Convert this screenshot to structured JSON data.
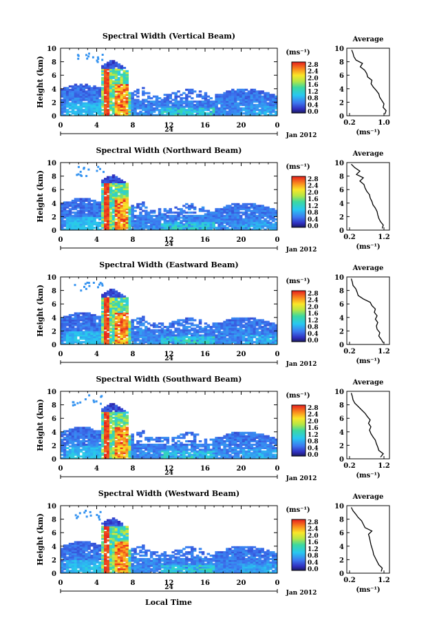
{
  "figure": {
    "xlabel": "Local Time",
    "date_label": "Jan 2012",
    "cbar_unit": "(ms⁻¹)",
    "avg_title": "Average",
    "avg_xlabel": "(ms⁻¹)",
    "ylabel": "Height (km)"
  },
  "chart_data": [
    {
      "type": "heatmap",
      "title": "Spectral Width (Vertical Beam)",
      "xticks": [
        "0",
        "4",
        "8",
        "12",
        "16",
        "20",
        "0"
      ],
      "day_label": "24",
      "yticks": [
        "0",
        "2",
        "4",
        "6",
        "8",
        "10"
      ],
      "xlim": [
        0,
        24
      ],
      "ylim": [
        0,
        10
      ],
      "colorbar_ticks": [
        "0.0",
        "0.4",
        "0.8",
        "1.2",
        "1.6",
        "2.0",
        "2.4",
        "2.8"
      ],
      "avg_xticks": [
        "0.2",
        "1.0"
      ],
      "avg_xlim": [
        0.2,
        1.0
      ],
      "avg_profile": {
        "height": [
          0,
          0.5,
          1,
          1.5,
          2,
          2.5,
          3,
          3.5,
          4,
          4.5,
          5,
          5.5,
          6,
          6.5,
          7,
          7.5,
          8,
          8.5,
          9,
          9.5
        ],
        "value": [
          1.02,
          1.05,
          0.98,
          1.0,
          0.95,
          0.9,
          0.88,
          0.82,
          0.75,
          0.7,
          0.72,
          0.62,
          0.6,
          0.55,
          0.45,
          0.5,
          0.35,
          0.3,
          0.28,
          0.25
        ]
      }
    },
    {
      "type": "heatmap",
      "title": "Spectral Width (Northward Beam)",
      "xticks": [
        "0",
        "4",
        "8",
        "12",
        "16",
        "20",
        "0"
      ],
      "day_label": "24",
      "yticks": [
        "0",
        "2",
        "4",
        "6",
        "8",
        "10"
      ],
      "xlim": [
        0,
        24
      ],
      "ylim": [
        0,
        10
      ],
      "colorbar_ticks": [
        "0.0",
        "0.4",
        "0.8",
        "1.2",
        "1.6",
        "2.0",
        "2.4",
        "2.8"
      ],
      "avg_xticks": [
        "0.2",
        "1.2"
      ],
      "avg_xlim": [
        0.2,
        1.2
      ],
      "avg_profile": {
        "height": [
          0,
          0.5,
          1,
          1.5,
          2,
          2.5,
          3,
          3.5,
          4,
          4.5,
          5,
          5.5,
          6,
          6.5,
          7,
          7.5,
          8,
          8.5,
          9,
          9.5
        ],
        "value": [
          1.15,
          1.18,
          1.1,
          1.05,
          1.02,
          1.0,
          0.95,
          0.88,
          0.85,
          0.8,
          0.78,
          0.7,
          0.65,
          0.62,
          0.5,
          0.6,
          0.4,
          0.5,
          0.35,
          0.25
        ]
      }
    },
    {
      "type": "heatmap",
      "title": "Spectral Width (Eastward Beam)",
      "xticks": [
        "0",
        "4",
        "8",
        "12",
        "16",
        "20",
        "0"
      ],
      "day_label": "24",
      "yticks": [
        "0",
        "2",
        "4",
        "6",
        "8",
        "10"
      ],
      "xlim": [
        0,
        24
      ],
      "ylim": [
        0,
        10
      ],
      "colorbar_ticks": [
        "0.0",
        "0.4",
        "0.8",
        "1.2",
        "1.6",
        "2.0",
        "2.4",
        "2.8"
      ],
      "avg_xticks": [
        "0.2",
        "1.2"
      ],
      "avg_xlim": [
        0.2,
        1.2
      ],
      "avg_profile": {
        "height": [
          0,
          0.5,
          1,
          1.5,
          2,
          2.5,
          3,
          3.5,
          4,
          4.5,
          5,
          5.5,
          6,
          6.5,
          7,
          7.5,
          8,
          8.5,
          9,
          9.5
        ],
        "value": [
          1.18,
          1.12,
          1.05,
          1.08,
          1.0,
          0.98,
          1.02,
          0.95,
          1.0,
          0.92,
          0.95,
          0.85,
          0.8,
          0.6,
          0.45,
          0.42,
          0.38,
          0.3,
          0.28,
          0.25
        ]
      }
    },
    {
      "type": "heatmap",
      "title": "Spectral Width (Southward Beam)",
      "xticks": [
        "0",
        "4",
        "8",
        "12",
        "16",
        "20",
        "0"
      ],
      "day_label": "24",
      "yticks": [
        "0",
        "2",
        "4",
        "6",
        "8",
        "10"
      ],
      "xlim": [
        0,
        24
      ],
      "ylim": [
        0,
        10
      ],
      "colorbar_ticks": [
        "0.0",
        "0.4",
        "0.8",
        "1.2",
        "1.6",
        "2.0",
        "2.4",
        "2.8"
      ],
      "avg_xticks": [
        "0.2",
        "1.2"
      ],
      "avg_xlim": [
        0.2,
        1.2
      ],
      "avg_profile": {
        "height": [
          0,
          0.5,
          1,
          1.5,
          2,
          2.5,
          3,
          3.5,
          4,
          4.5,
          5,
          5.5,
          6,
          6.5,
          7,
          7.5,
          8,
          8.5,
          9,
          9.5
        ],
        "value": [
          1.1,
          1.18,
          1.05,
          1.02,
          0.98,
          0.95,
          0.88,
          0.82,
          0.78,
          0.82,
          0.75,
          0.8,
          0.72,
          0.65,
          0.55,
          0.45,
          0.35,
          0.3,
          0.28,
          0.25
        ]
      }
    },
    {
      "type": "heatmap",
      "title": "Spectral Width (Westward Beam)",
      "xticks": [
        "0",
        "4",
        "8",
        "12",
        "16",
        "20",
        "0"
      ],
      "day_label": "24",
      "yticks": [
        "0",
        "2",
        "4",
        "6",
        "8",
        "10"
      ],
      "xlim": [
        0,
        24
      ],
      "ylim": [
        0,
        10
      ],
      "colorbar_ticks": [
        "0.0",
        "0.4",
        "0.8",
        "1.2",
        "1.6",
        "2.0",
        "2.4",
        "2.8"
      ],
      "avg_xticks": [
        "0.2",
        "1.2"
      ],
      "avg_xlim": [
        0.2,
        1.2
      ],
      "avg_profile": {
        "height": [
          0,
          0.5,
          1,
          1.5,
          2,
          2.5,
          3,
          3.5,
          4,
          4.5,
          5,
          5.5,
          6,
          6.5,
          7,
          7.5,
          8,
          8.5,
          9,
          9.5
        ],
        "value": [
          1.12,
          1.15,
          1.05,
          1.0,
          0.95,
          0.9,
          0.88,
          0.85,
          0.82,
          0.8,
          0.78,
          0.75,
          0.85,
          0.65,
          0.6,
          0.55,
          0.45,
          0.38,
          0.3,
          0.25
        ]
      }
    }
  ]
}
